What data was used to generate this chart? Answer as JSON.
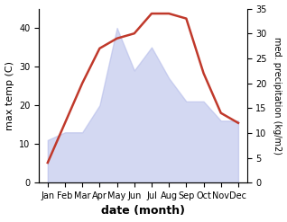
{
  "months": [
    "Jan",
    "Feb",
    "Mar",
    "Apr",
    "May",
    "Jun",
    "Jul",
    "Aug",
    "Sep",
    "Oct",
    "Nov",
    "Dec"
  ],
  "temperature": [
    11,
    13,
    13,
    20,
    40,
    29,
    35,
    27,
    21,
    21,
    16,
    16
  ],
  "precipitation_line": [
    4,
    12,
    20,
    27,
    29,
    30,
    34,
    34,
    33,
    22,
    14,
    12
  ],
  "temp_color_fill": "#b0b8e8",
  "temp_fill_alpha": 0.55,
  "precip_line_color": "#c0392b",
  "left_ylim": [
    0,
    45
  ],
  "left_yticks": [
    0,
    10,
    20,
    30,
    40
  ],
  "right_ylim": [
    0,
    35
  ],
  "right_yticks": [
    0,
    5,
    10,
    15,
    20,
    25,
    30,
    35
  ],
  "xlabel": "date (month)",
  "ylabel_left": "max temp (C)",
  "ylabel_right": "med. precipitation (kg/m2)",
  "fig_width": 3.18,
  "fig_height": 2.47,
  "dpi": 100,
  "line_width": 1.8,
  "tick_fontsize": 7,
  "label_fontsize": 8,
  "xlabel_fontsize": 9
}
